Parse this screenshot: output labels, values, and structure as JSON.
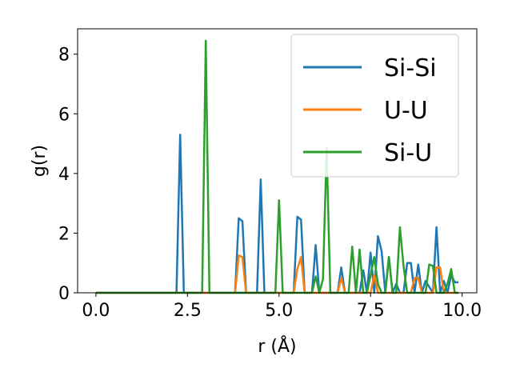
{
  "chart_data": {
    "type": "line",
    "xlabel": "r (Å)",
    "ylabel": "g(r)",
    "xlim": [
      -0.5,
      10.4
    ],
    "ylim": [
      0,
      8.85
    ],
    "xticks": [
      0.0,
      2.5,
      5.0,
      7.5,
      10.0
    ],
    "xtick_labels": [
      "0.0",
      "2.5",
      "5.0",
      "7.5",
      "10.0"
    ],
    "yticks": [
      0,
      2,
      4,
      6,
      8
    ],
    "ytick_labels": [
      "0",
      "2",
      "4",
      "6",
      "8"
    ],
    "grid": false,
    "legend_position": "upper right",
    "series": [
      {
        "name": "Si-Si",
        "color": "#1f77b4",
        "x": [
          0.0,
          2.2,
          2.3,
          2.4,
          4.3,
          4.4,
          4.5,
          4.6,
          3.8,
          3.9,
          4.0,
          4.1,
          5.4,
          5.5,
          5.6,
          5.7,
          5.9,
          6.0,
          6.1,
          6.6,
          6.7,
          6.8,
          7.2,
          7.3,
          7.4,
          7.5,
          7.6,
          7.7,
          7.8,
          7.9,
          8.0,
          8.1,
          8.2,
          8.3,
          8.4,
          8.5,
          8.6,
          8.7,
          8.8,
          8.9,
          9.0,
          9.1,
          9.2,
          9.3,
          9.4,
          9.5,
          9.6,
          9.7,
          9.8,
          9.9
        ],
        "y": [
          0.0,
          0.0,
          5.3,
          0.0,
          0.0,
          0.0,
          3.8,
          0.0,
          0.0,
          2.5,
          2.4,
          0.0,
          0.0,
          2.55,
          2.45,
          0.0,
          0.0,
          1.6,
          0.0,
          0.0,
          0.85,
          0.0,
          0.0,
          0.75,
          0.0,
          1.35,
          0.0,
          1.9,
          1.4,
          0.0,
          1.2,
          0.0,
          0.3,
          0.0,
          0.0,
          1.0,
          1.0,
          0.0,
          0.95,
          0.0,
          0.4,
          0.2,
          0.0,
          2.2,
          0.0,
          0.4,
          0.0,
          0.6,
          0.35,
          0.35
        ]
      },
      {
        "name": "U-U",
        "color": "#ff7f0e",
        "x": [
          0.0,
          3.8,
          3.9,
          4.0,
          4.1,
          5.4,
          5.5,
          5.6,
          5.7,
          6.6,
          6.7,
          6.8,
          7.5,
          7.6,
          7.7,
          8.6,
          8.7,
          8.8,
          8.9,
          9.2,
          9.3,
          9.4,
          9.5,
          9.6,
          9.9
        ],
        "y": [
          0.0,
          0.0,
          1.25,
          1.2,
          0.0,
          0.0,
          0.8,
          1.2,
          0.0,
          0.0,
          0.5,
          0.0,
          0.0,
          0.6,
          0.0,
          0.0,
          0.5,
          0.5,
          0.0,
          0.0,
          0.85,
          0.85,
          0.0,
          0.0,
          0.0
        ]
      },
      {
        "name": "Si-U",
        "color": "#2ca02c",
        "x": [
          0.0,
          2.9,
          3.0,
          3.1,
          4.9,
          5.0,
          5.1,
          5.9,
          6.0,
          6.1,
          6.2,
          6.3,
          6.4,
          6.9,
          7.0,
          7.1,
          7.2,
          7.3,
          7.4,
          7.6,
          7.7,
          7.8,
          7.9,
          8.0,
          8.1,
          8.2,
          8.3,
          8.4,
          8.5,
          8.6,
          9.0,
          9.1,
          9.2,
          9.3,
          9.4,
          9.5,
          9.6,
          9.7,
          9.8,
          9.9
        ],
        "y": [
          0.0,
          0.0,
          8.45,
          0.0,
          0.0,
          3.1,
          0.0,
          0.0,
          0.55,
          0.0,
          0.45,
          4.85,
          0.0,
          0.0,
          1.55,
          0.0,
          1.45,
          0.0,
          0.0,
          1.2,
          0.3,
          0.0,
          0.0,
          1.2,
          0.0,
          0.0,
          2.2,
          0.9,
          0.0,
          0.0,
          0.0,
          0.95,
          0.9,
          0.0,
          0.0,
          0.0,
          0.3,
          0.8,
          0.0,
          0.0
        ]
      }
    ]
  }
}
